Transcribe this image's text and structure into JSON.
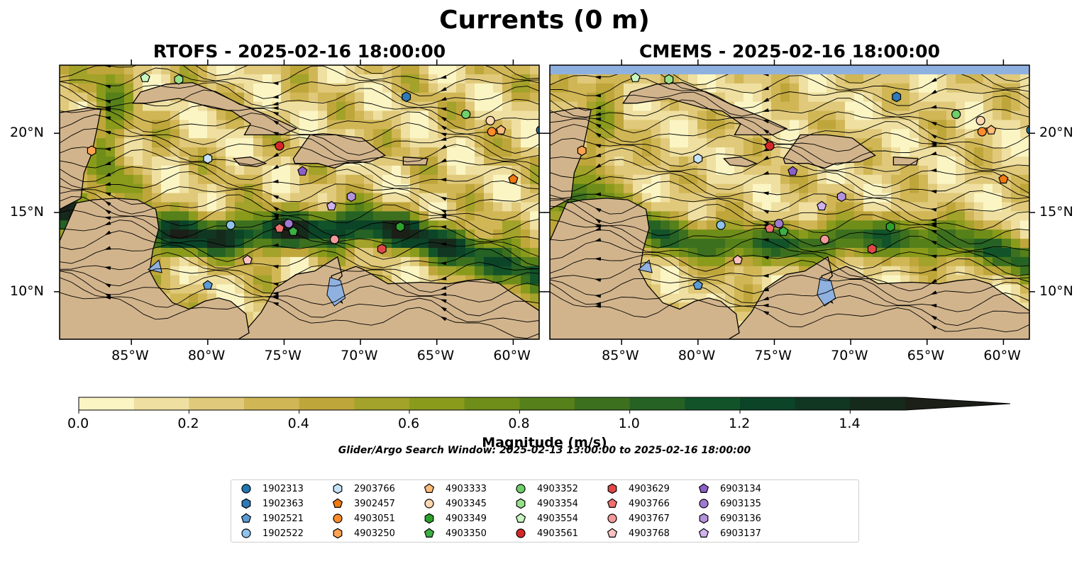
{
  "title": "Currents (0 m)",
  "panels": [
    {
      "id": "rtofs",
      "title": "RTOFS - 2025-02-16 18:00:00",
      "y_axis_side": "left"
    },
    {
      "id": "cmems",
      "title": "CMEMS - 2025-02-16 18:00:00",
      "y_axis_side": "right"
    }
  ],
  "map": {
    "lon_range": [
      -89.7,
      -58.3
    ],
    "lat_range": [
      7.0,
      24.3
    ],
    "lon_ticks": [
      "85°W",
      "80°W",
      "75°W",
      "70°W",
      "65°W",
      "60°W"
    ],
    "lon_tick_values": [
      -85,
      -80,
      -75,
      -70,
      -65,
      -60
    ],
    "lat_ticks": [
      "10°N",
      "15°N",
      "20°N"
    ],
    "lat_tick_values": [
      10,
      15,
      20
    ],
    "land_color": "#d2b48c",
    "inland_water_color": "#8fb1e0",
    "coastline": "black",
    "borders": "dashed black",
    "field": "surface current magnitude with streamlines"
  },
  "colorbar": {
    "label": "Magnitude (m/s)",
    "vmin": 0.0,
    "vmax": 1.5,
    "step": 0.1,
    "extend": "max",
    "tick_values": [
      0.0,
      0.2,
      0.4,
      0.6,
      0.8,
      1.0,
      1.2,
      1.4
    ],
    "tick_labels": [
      "0.0",
      "0.2",
      "0.4",
      "0.6",
      "0.8",
      "1.0",
      "1.2",
      "1.4"
    ],
    "colors": [
      "#fbf5c4",
      "#efe0a1",
      "#e0c97a",
      "#d0b655",
      "#bfa63b",
      "#a3a22a",
      "#8a9b1c",
      "#6f8d19",
      "#55801a",
      "#3c701f",
      "#256224",
      "#125329",
      "#0c4428",
      "#113622",
      "#162a1c",
      "#1b1f17"
    ]
  },
  "search_window": "Glider/Argo Search Window: 2025-02-13 13:00:00 to 2025-02-16 18:00:00",
  "legend": [
    {
      "id": "1902313",
      "marker": "circle",
      "color": "#1f77b4"
    },
    {
      "id": "1902363",
      "marker": "hexagon",
      "color": "#2f7ab8"
    },
    {
      "id": "1902521",
      "marker": "pentagon",
      "color": "#5b9bd5"
    },
    {
      "id": "1902522",
      "marker": "circle",
      "color": "#8fc3ec"
    },
    {
      "id": "2903766",
      "marker": "hexagon",
      "color": "#c6e2f7"
    },
    {
      "id": "3902457",
      "marker": "pentagon",
      "color": "#f07a10"
    },
    {
      "id": "4903051",
      "marker": "circle",
      "color": "#ff8c2a"
    },
    {
      "id": "4903250",
      "marker": "hexagon",
      "color": "#ffa352"
    },
    {
      "id": "4903333",
      "marker": "pentagon",
      "color": "#ffbb78"
    },
    {
      "id": "4903345",
      "marker": "circle",
      "color": "#ffd7b0"
    },
    {
      "id": "4903349",
      "marker": "hexagon",
      "color": "#2ca02c"
    },
    {
      "id": "4903350",
      "marker": "pentagon",
      "color": "#3cb043"
    },
    {
      "id": "4903352",
      "marker": "circle",
      "color": "#6fcf6a"
    },
    {
      "id": "4903354",
      "marker": "hexagon",
      "color": "#98df8a"
    },
    {
      "id": "4903554",
      "marker": "pentagon",
      "color": "#c8f5c0"
    },
    {
      "id": "4903561",
      "marker": "circle",
      "color": "#d62728"
    },
    {
      "id": "4903629",
      "marker": "hexagon",
      "color": "#e04848"
    },
    {
      "id": "4903766",
      "marker": "pentagon",
      "color": "#f07070"
    },
    {
      "id": "4903767",
      "marker": "circle",
      "color": "#f49a9a"
    },
    {
      "id": "4903768",
      "marker": "pentagon",
      "color": "#ffc2c2"
    },
    {
      "id": "6903134",
      "marker": "pentagon",
      "color": "#8c5fc8"
    },
    {
      "id": "6903135",
      "marker": "circle",
      "color": "#a07ad0"
    },
    {
      "id": "6903136",
      "marker": "hexagon",
      "color": "#b592dc"
    },
    {
      "id": "6903137",
      "marker": "pentagon",
      "color": "#cfb2ee"
    }
  ],
  "platforms": [
    {
      "id": "1902313",
      "lon": -58.2,
      "lat": 20.2
    },
    {
      "id": "1902363",
      "lon": -67.0,
      "lat": 22.3
    },
    {
      "id": "1902521",
      "lon": -80.0,
      "lat": 10.4
    },
    {
      "id": "1902522",
      "lon": -78.5,
      "lat": 14.2
    },
    {
      "id": "2903766",
      "lon": -80.0,
      "lat": 18.4
    },
    {
      "id": "3902457",
      "lon": -60.0,
      "lat": 17.1
    },
    {
      "id": "4903051",
      "lon": -61.4,
      "lat": 20.1
    },
    {
      "id": "4903250",
      "lon": -87.6,
      "lat": 18.9
    },
    {
      "id": "4903333",
      "lon": -60.8,
      "lat": 20.2
    },
    {
      "id": "4903345",
      "lon": -61.5,
      "lat": 20.8
    },
    {
      "id": "4903349",
      "lon": -67.4,
      "lat": 14.1
    },
    {
      "id": "4903350",
      "lon": -74.4,
      "lat": 13.8
    },
    {
      "id": "4903352",
      "lon": -63.1,
      "lat": 21.2
    },
    {
      "id": "4903354",
      "lon": -81.9,
      "lat": 23.4
    },
    {
      "id": "4903554",
      "lon": -84.1,
      "lat": 23.5
    },
    {
      "id": "4903561",
      "lon": -75.3,
      "lat": 19.2
    },
    {
      "id": "4903629",
      "lon": -68.6,
      "lat": 12.7
    },
    {
      "id": "4903766",
      "lon": -75.3,
      "lat": 14.0
    },
    {
      "id": "4903767",
      "lon": -71.7,
      "lat": 13.3
    },
    {
      "id": "4903768",
      "lon": -77.4,
      "lat": 12.0
    },
    {
      "id": "6903134",
      "lon": -73.8,
      "lat": 17.6
    },
    {
      "id": "6903135",
      "lon": -74.7,
      "lat": 14.3
    },
    {
      "id": "6903136",
      "lon": -70.6,
      "lat": 16.0
    },
    {
      "id": "6903137",
      "lon": -71.9,
      "lat": 15.4
    }
  ]
}
